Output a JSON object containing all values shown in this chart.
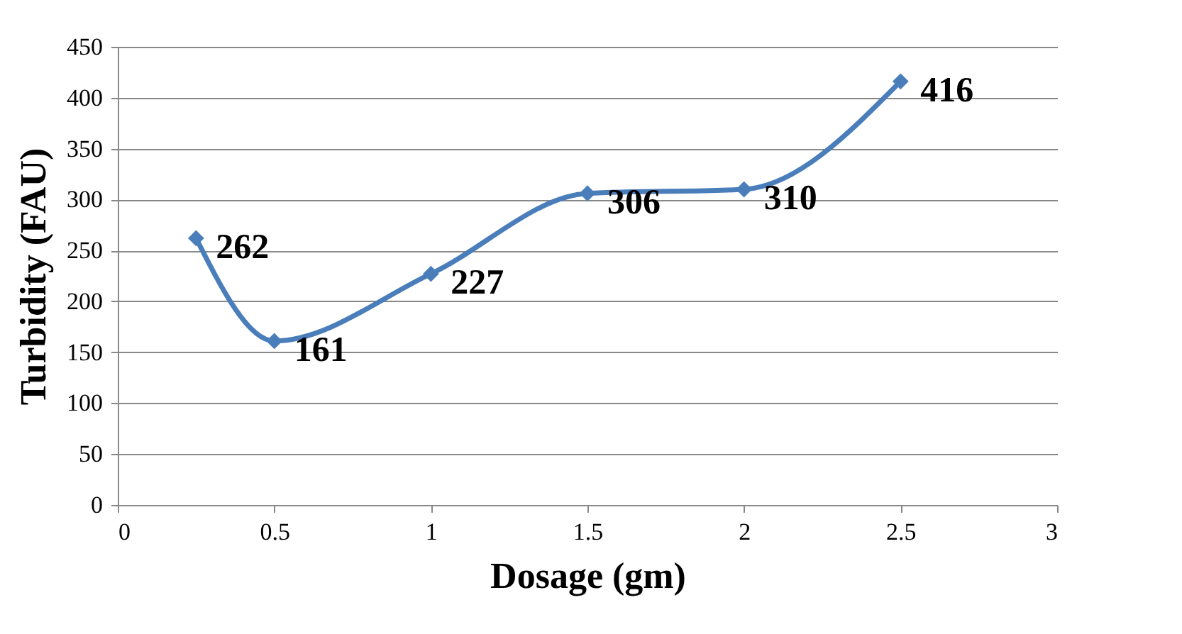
{
  "chart_data": {
    "type": "line",
    "xlabel": "Dosage (gm)",
    "ylabel": "Turbidity (FAU)",
    "x": [
      0.25,
      0.5,
      1,
      1.5,
      2,
      2.5
    ],
    "series": [
      {
        "color": "#4a7ebb",
        "values": [
          262,
          161,
          227,
          306,
          310,
          416
        ]
      }
    ],
    "xlim": [
      0,
      3
    ],
    "xticks": [
      0,
      0.5,
      1,
      1.5,
      2,
      2.5,
      3
    ],
    "ylim": [
      0,
      450
    ],
    "yticks": [
      0,
      50,
      100,
      150,
      200,
      250,
      300,
      350,
      400,
      450
    ],
    "grid": "y",
    "marker": "diamond",
    "line_style": "solid",
    "data_labels": true
  }
}
